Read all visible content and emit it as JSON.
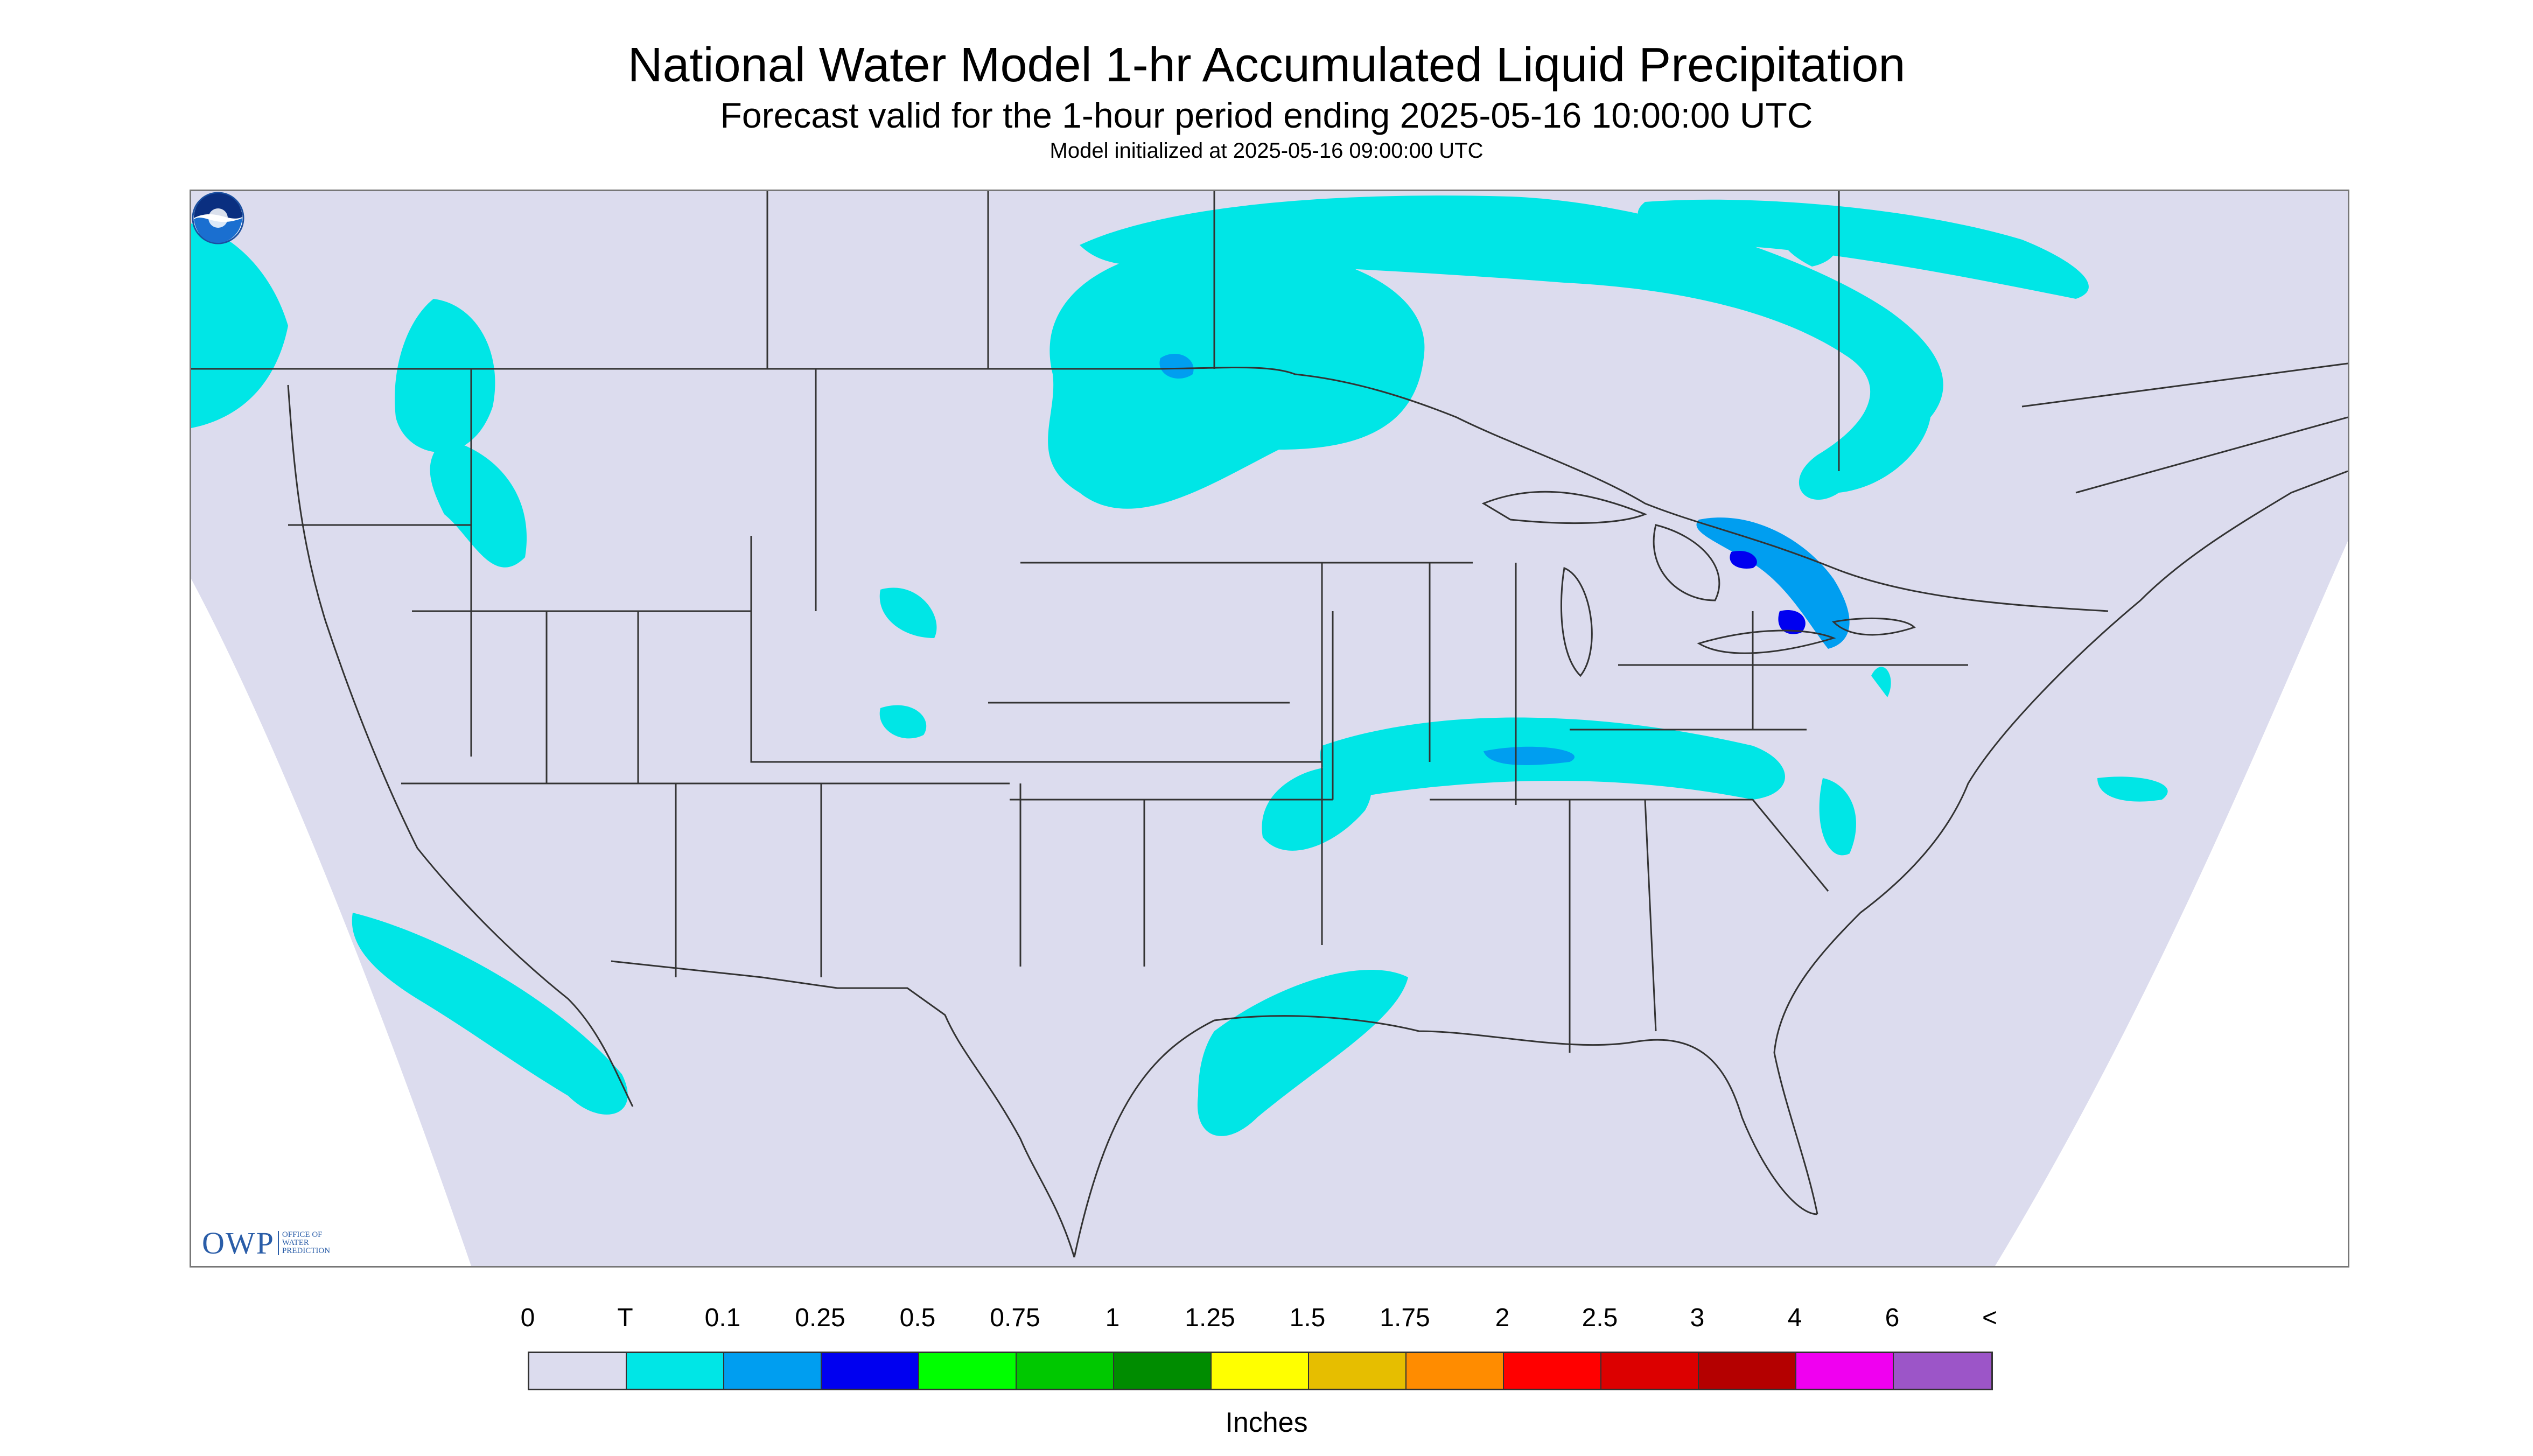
{
  "title": "National Water Model 1-hr Accumulated Liquid Precipitation",
  "subtitle": "Forecast valid for the 1-hour period ending 2025-05-16 10:00:00 UTC",
  "init": "Model initialized at 2025-05-16 09:00:00 UTC",
  "colors": {
    "background_domain": "#dcdcee",
    "trace": "#00e6e6",
    "point_1": "#009ef0",
    "quarter": "#0000f0",
    "boundary": "#333333"
  },
  "logos": {
    "owp_big": "OWP",
    "owp_small": [
      "OFFICE OF",
      "WATER",
      "PREDICTION"
    ],
    "noaa": "NOAA"
  },
  "legend": {
    "labels": [
      "0",
      "T",
      "0.1",
      "0.25",
      "0.5",
      "0.75",
      "1",
      "1.25",
      "1.5",
      "1.75",
      "2",
      "2.5",
      "3",
      "4",
      "6",
      "<"
    ],
    "colors": [
      "#dcdcee",
      "#00e6e6",
      "#009ef0",
      "#0000f0",
      "#00ff00",
      "#00c800",
      "#008c00",
      "#ffff00",
      "#e6be00",
      "#ff8c00",
      "#ff0000",
      "#dc0000",
      "#b40000",
      "#f000f0",
      "#9c55c8"
    ],
    "units": "Inches"
  }
}
